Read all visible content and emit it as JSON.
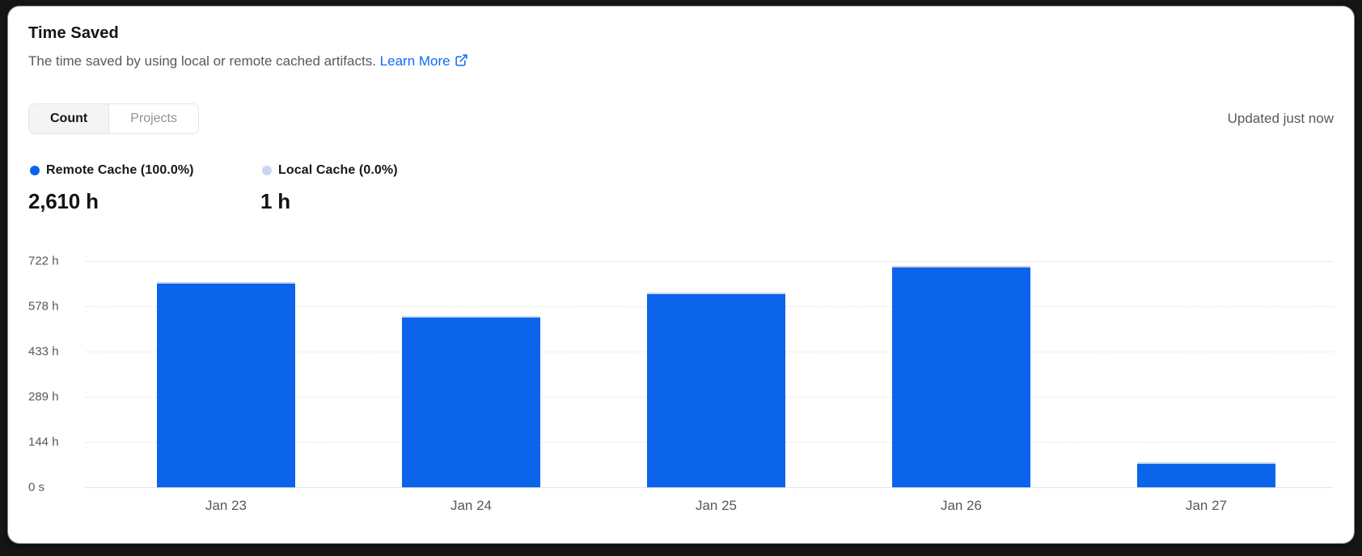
{
  "card": {
    "title": "Time Saved",
    "subtitle": "The time saved by using local or remote cached artifacts.",
    "learn_more_label": "Learn More",
    "updated_text": "Updated just now",
    "tabs": [
      {
        "label": "Count",
        "active": true
      },
      {
        "label": "Projects",
        "active": false
      }
    ]
  },
  "legend": [
    {
      "label": "Remote Cache (100.0%)",
      "value": "2,610 h",
      "color": "#0b64ea"
    },
    {
      "label": "Local Cache (0.0%)",
      "value": "1 h",
      "color": "#c9d5f2"
    }
  ],
  "colors": {
    "remote_blue": "#0b64ea",
    "local_light": "#c9d5f2",
    "link_blue": "#0a6cf5",
    "card_bg": "#ffffff",
    "frame_bg": "#161616",
    "gridline": "#e7e8ea",
    "axis_text": "#55585c"
  },
  "chart_data": {
    "type": "bar",
    "title": "Time Saved",
    "categories": [
      "Jan 23",
      "Jan 24",
      "Jan 25",
      "Jan 26",
      "Jan 27"
    ],
    "series": [
      {
        "name": "Remote Cache",
        "values": [
          656,
          546,
          622,
          706,
          80
        ],
        "color": "#0b64ea"
      },
      {
        "name": "Local Cache",
        "values": [
          0.2,
          0.2,
          0.2,
          0.2,
          0.2
        ],
        "color": "#c9d5f2"
      }
    ],
    "unit": "h",
    "xlabel": "",
    "ylabel": "",
    "ylim": [
      0,
      722
    ],
    "y_ticks": [
      {
        "value": 722,
        "label": "722 h"
      },
      {
        "value": 577.6,
        "label": "578 h"
      },
      {
        "value": 433.2,
        "label": "433 h"
      },
      {
        "value": 288.8,
        "label": "289 h"
      },
      {
        "value": 144.4,
        "label": "144 h"
      },
      {
        "value": 0,
        "label": "0 s"
      }
    ],
    "grid": "horizontal-dashed",
    "legend_position": "top-left"
  }
}
